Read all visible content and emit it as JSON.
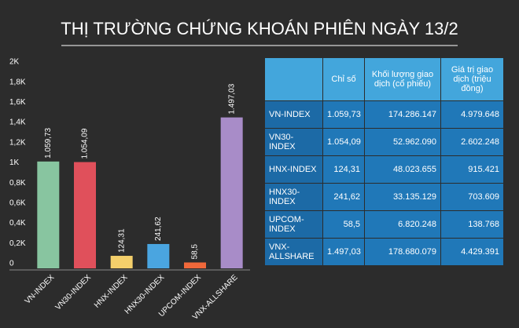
{
  "title": "THỊ TRƯỜNG CHỨNG KHOÁN PHIÊN NGÀY 13/2",
  "chart_data": {
    "type": "bar",
    "categories": [
      "VN-INDEX",
      "VN30-INDEX",
      "HNX-INDEX",
      "HNX30-INDEX",
      "UPCOM-INDEX",
      "VNX-ALLSHARE"
    ],
    "values": [
      1059.73,
      1054.09,
      124.31,
      241.62,
      58.5,
      1497.03
    ],
    "value_labels": [
      "1.059,73",
      "1.054,09",
      "124,31",
      "241,62",
      "58,5",
      "1.497,03"
    ],
    "colors": [
      "#88c5a0",
      "#e0505b",
      "#f4cf6b",
      "#4aa5e0",
      "#f0683a",
      "#a88cc8"
    ],
    "ylim": [
      0,
      2000
    ],
    "yticks": [
      0,
      {
        "value": 200,
        "label": "0,2K"
      },
      {
        "value": 400,
        "label": "0,4K"
      },
      {
        "value": 600,
        "label": "0,6K"
      },
      {
        "value": 800,
        "label": "0,8K"
      },
      {
        "value": 1000,
        "label": "1K"
      },
      {
        "value": 1200,
        "label": "1,2K"
      },
      {
        "value": 1400,
        "label": "1,4K"
      },
      {
        "value": 1600,
        "label": "1,6K"
      },
      {
        "value": 1800,
        "label": "1,8K"
      },
      {
        "value": 2000,
        "label": "2K"
      }
    ],
    "grid": false
  },
  "table": {
    "columns": [
      "Chỉ số",
      "Khối lượng giao dịch (cổ phiếu)",
      "Giá trị giao dịch (triệu đồng)"
    ],
    "rows": [
      [
        "VN-INDEX",
        "1.059,73",
        "174.286.147",
        "4.979.648"
      ],
      [
        "VN30-INDEX",
        "1.054,09",
        "52.962.090",
        "2.602.248"
      ],
      [
        "HNX-INDEX",
        "124,31",
        "48.023.655",
        "915.421"
      ],
      [
        "HNX30-INDEX",
        "241,62",
        "33.135.129",
        "703.609"
      ],
      [
        "UPCOM-INDEX",
        "58,5",
        "6.820.248",
        "138.768"
      ],
      [
        "VNX-ALLSHARE",
        "1.497,03",
        "178.680.079",
        "4.429.391"
      ]
    ]
  }
}
